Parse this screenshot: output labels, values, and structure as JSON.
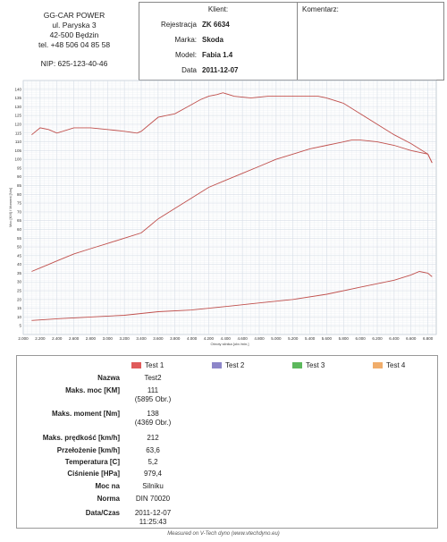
{
  "company": {
    "name": "GG-CAR POWER",
    "street": "ul. Paryska 3",
    "city": "42-500 Będzin",
    "phone": "tel. +48 506 04 85 58",
    "nip": "NIP: 625-123-40-46"
  },
  "client": {
    "title": "Klient:",
    "rows": [
      {
        "label": "Rejestracja",
        "value": "ZK 6634"
      },
      {
        "label": "Marka:",
        "value": "Skoda"
      },
      {
        "label": "Model:",
        "value": "Fabia 1.4"
      },
      {
        "label": "Data",
        "value": "2011-12-07"
      }
    ]
  },
  "comment": {
    "title": "Komentarz:"
  },
  "colors": {
    "curve": "#c0504d",
    "grid": "#d6dde6",
    "test1": "#e05a5a",
    "test2": "#8d86c9",
    "test3": "#5cb85c",
    "test4": "#f0ad6b"
  },
  "chart_data": {
    "type": "line",
    "ylabel": "Moc [KM] / Moment [Nm]",
    "xlabel": "Obroty silnika [obr./min.]",
    "xlim": [
      2000,
      6900
    ],
    "ylim": [
      0,
      145
    ],
    "x_ticks": [
      "2.000",
      "2.200",
      "2.400",
      "2.600",
      "2.800",
      "3.000",
      "3.200",
      "3.400",
      "3.600",
      "3.800",
      "4.000",
      "4.200",
      "4.400",
      "4.600",
      "4.800",
      "5.000",
      "5.200",
      "5.400",
      "5.600",
      "5.800",
      "6.000",
      "6.200",
      "6.400",
      "6.600",
      "6.800"
    ],
    "y_ticks": [
      5,
      10,
      15,
      20,
      25,
      30,
      35,
      40,
      45,
      50,
      55,
      60,
      65,
      70,
      75,
      80,
      85,
      90,
      95,
      100,
      105,
      110,
      115,
      120,
      125,
      130,
      135,
      140
    ],
    "series": [
      {
        "x": [
          2100,
          2200,
          2300,
          2400,
          2600,
          2800,
          3000,
          3200,
          3350,
          3400,
          3500,
          3600,
          3800,
          3950,
          4100,
          4200,
          4300,
          4369,
          4500,
          4700,
          4900,
          5100,
          5300,
          5500,
          5600,
          5800,
          6000,
          6200,
          6400,
          6600,
          6700,
          6800,
          6850
        ],
        "y": [
          114,
          118,
          117,
          115,
          118,
          118,
          117,
          116,
          115,
          116,
          120,
          124,
          126,
          130,
          134,
          136,
          137,
          138,
          136,
          135,
          136,
          136,
          136,
          136,
          135,
          132,
          126,
          120,
          114,
          109,
          106,
          103,
          98
        ]
      },
      {
        "x": [
          2100,
          2200,
          2300,
          2400,
          2600,
          2800,
          3000,
          3200,
          3400,
          3500,
          3600,
          3800,
          4000,
          4200,
          4400,
          4600,
          4800,
          5000,
          5200,
          5400,
          5600,
          5800,
          5895,
          6000,
          6200,
          6400,
          6600,
          6700,
          6800,
          6850
        ],
        "y": [
          36,
          38,
          40,
          42,
          46,
          49,
          52,
          55,
          58,
          62,
          66,
          72,
          78,
          84,
          88,
          92,
          96,
          100,
          103,
          106,
          108,
          110,
          111,
          111,
          110,
          108,
          105,
          104,
          103,
          98
        ]
      },
      {
        "x": [
          2100,
          2400,
          2800,
          3200,
          3600,
          4000,
          4400,
          4800,
          5200,
          5600,
          6000,
          6200,
          6400,
          6600,
          6700,
          6800,
          6850
        ],
        "y": [
          8,
          9,
          10,
          11,
          13,
          14,
          16,
          18,
          20,
          23,
          27,
          29,
          31,
          34,
          36,
          35,
          33
        ]
      }
    ]
  },
  "table": {
    "legend": [
      "Test 1",
      "Test 2",
      "Test 3",
      "Test 4"
    ],
    "rows": [
      {
        "label": "Nazwa",
        "lines": [
          "Test2"
        ]
      },
      {
        "label": "Maks. moc [KM]",
        "lines": [
          "111",
          "(5895 Obr.)"
        ]
      },
      {
        "label": "Maks. moment [Nm]",
        "lines": [
          "138",
          "(4369 Obr.)"
        ]
      },
      {
        "label": "Maks. prędkość [km/h]",
        "lines": [
          "212"
        ]
      },
      {
        "label": "Przełożenie [km/h]",
        "lines": [
          "63,6"
        ]
      },
      {
        "label": "Temperatura [C]",
        "lines": [
          "5,2"
        ]
      },
      {
        "label": "Ciśnienie [HPa]",
        "lines": [
          "979,4"
        ]
      },
      {
        "label": "Moc na",
        "lines": [
          "Silniku"
        ]
      },
      {
        "label": "Norma",
        "lines": [
          "DIN 70020"
        ]
      },
      {
        "label": "Data/Czas",
        "lines": [
          "2011-12-07",
          "11:25:43"
        ]
      }
    ]
  },
  "footer": "Measured on V-Tech dyno (www.vtechdyno.eu)"
}
